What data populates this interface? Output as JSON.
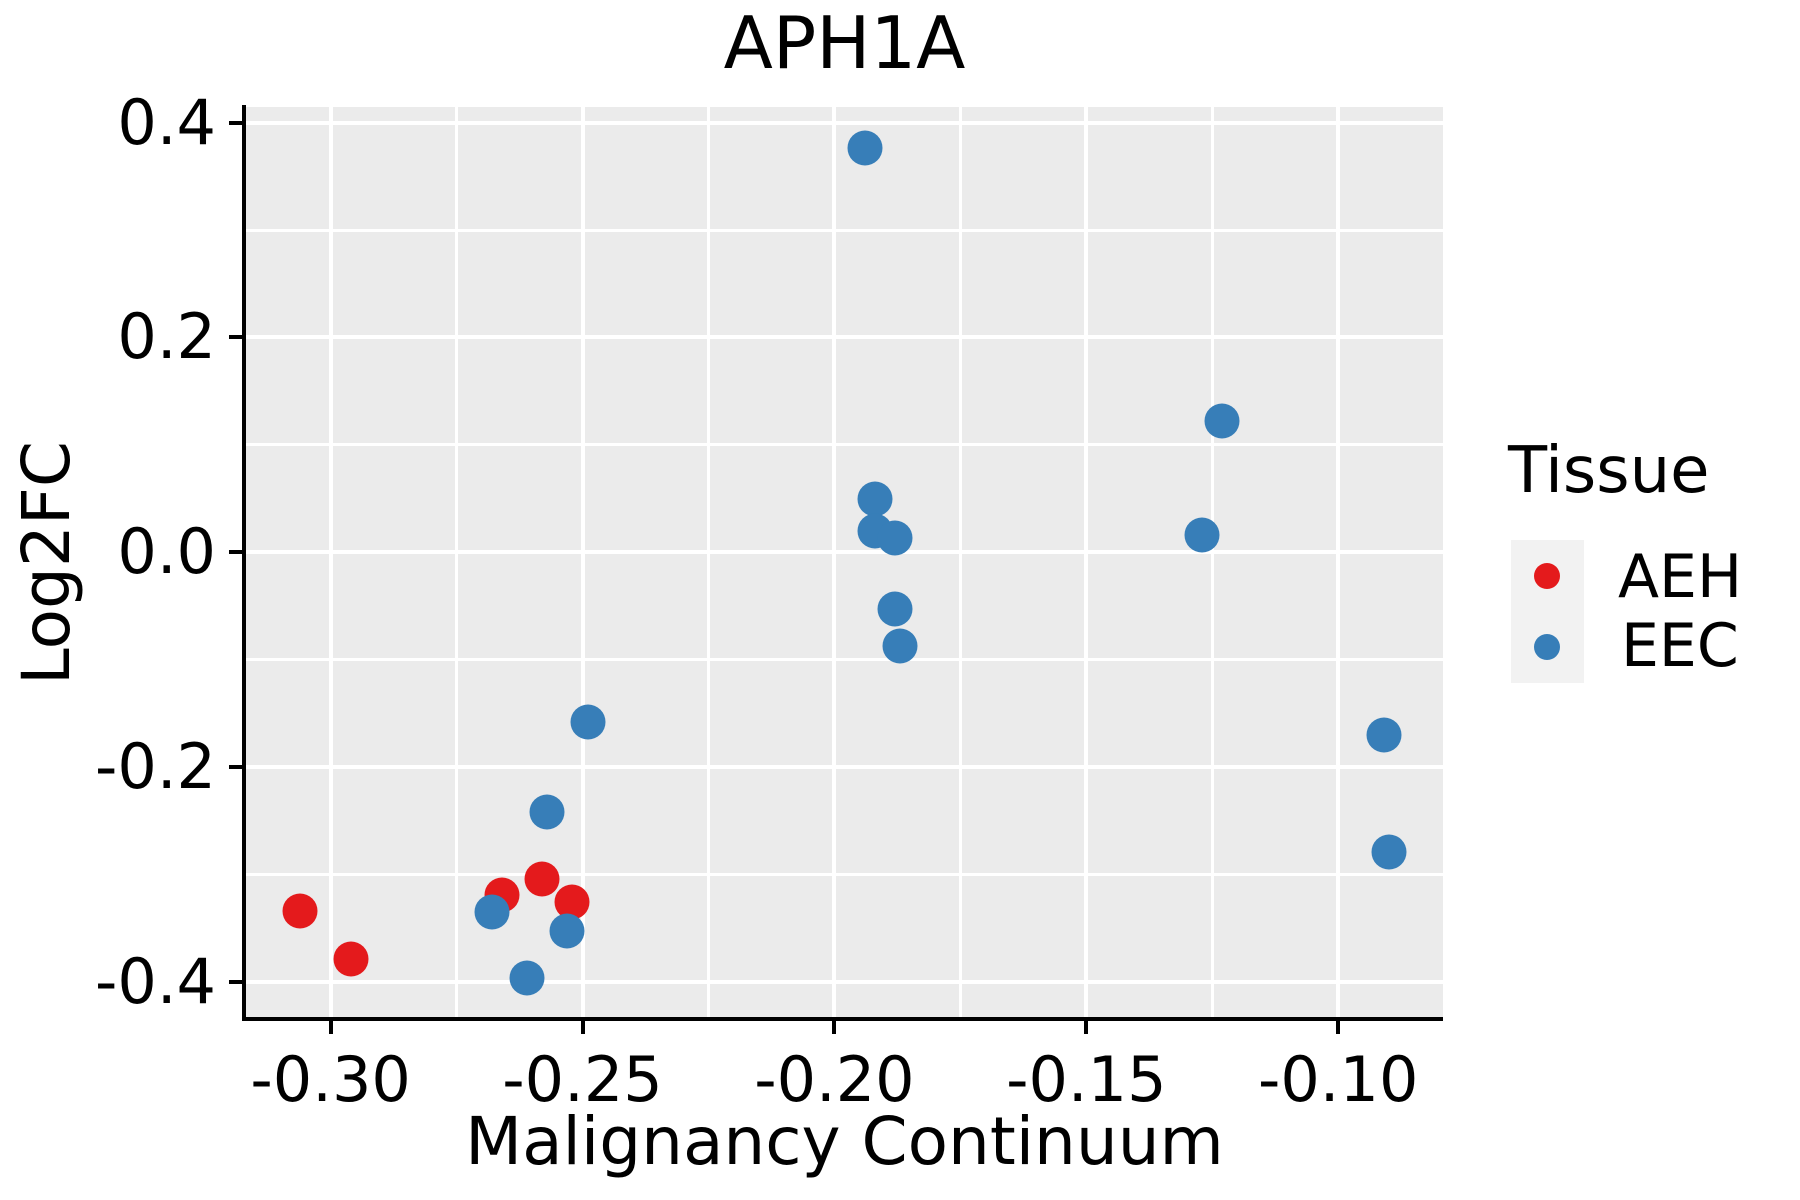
{
  "title": "APH1A",
  "chart_data": {
    "type": "scatter",
    "title": "APH1A",
    "xlabel": "Malignancy Continuum",
    "ylabel": "Log2FC",
    "xlim": [
      -0.3168,
      -0.0792
    ],
    "ylim": [
      -0.4346,
      0.4146
    ],
    "x_ticks": [
      -0.3,
      -0.25,
      -0.2,
      -0.15,
      -0.1
    ],
    "x_tick_labels": [
      "-0.30",
      "-0.25",
      "-0.20",
      "-0.15",
      "-0.10"
    ],
    "y_ticks": [
      0.4,
      0.2,
      0.0,
      -0.2,
      -0.4
    ],
    "y_tick_labels": [
      "0.4",
      "0.2",
      "0.0",
      "-0.2",
      "-0.4"
    ],
    "x_minor_ticks": [
      -0.275,
      -0.225,
      -0.175,
      -0.125
    ],
    "y_minor_ticks": [
      0.3,
      0.1,
      -0.1,
      -0.3
    ],
    "grid": "white major and minor gridlines on gray panel",
    "legend_position": "right",
    "series": [
      {
        "name": "AEH",
        "color": "#E41A1C",
        "points": [
          [
            -0.306,
            -0.334
          ],
          [
            -0.296,
            -0.379
          ],
          [
            -0.266,
            -0.319
          ],
          [
            -0.258,
            -0.304
          ],
          [
            -0.252,
            -0.326
          ]
        ]
      },
      {
        "name": "EEC",
        "color": "#377EB8",
        "points": [
          [
            -0.194,
            0.376
          ],
          [
            -0.192,
            0.05
          ],
          [
            -0.192,
            0.02
          ],
          [
            -0.188,
            0.013
          ],
          [
            -0.188,
            -0.053
          ],
          [
            -0.187,
            -0.087
          ],
          [
            -0.249,
            -0.158
          ],
          [
            -0.257,
            -0.242
          ],
          [
            -0.268,
            -0.335
          ],
          [
            -0.253,
            -0.353
          ],
          [
            -0.261,
            -0.396
          ],
          [
            -0.127,
            0.016
          ],
          [
            -0.123,
            0.122
          ],
          [
            -0.091,
            -0.17
          ],
          [
            -0.09,
            -0.279
          ]
        ]
      }
    ]
  },
  "legend": {
    "title": "Tissue",
    "items": [
      {
        "label": "AEH",
        "color": "#E41A1C"
      },
      {
        "label": "EEC",
        "color": "#377EB8"
      }
    ]
  },
  "colors": {
    "panel_background": "#EBEBEB",
    "gridline": "#FFFFFF",
    "aeh": "#E41A1C",
    "eec": "#377EB8",
    "legend_key_background": "#F2F2F2",
    "text": "#000000"
  }
}
